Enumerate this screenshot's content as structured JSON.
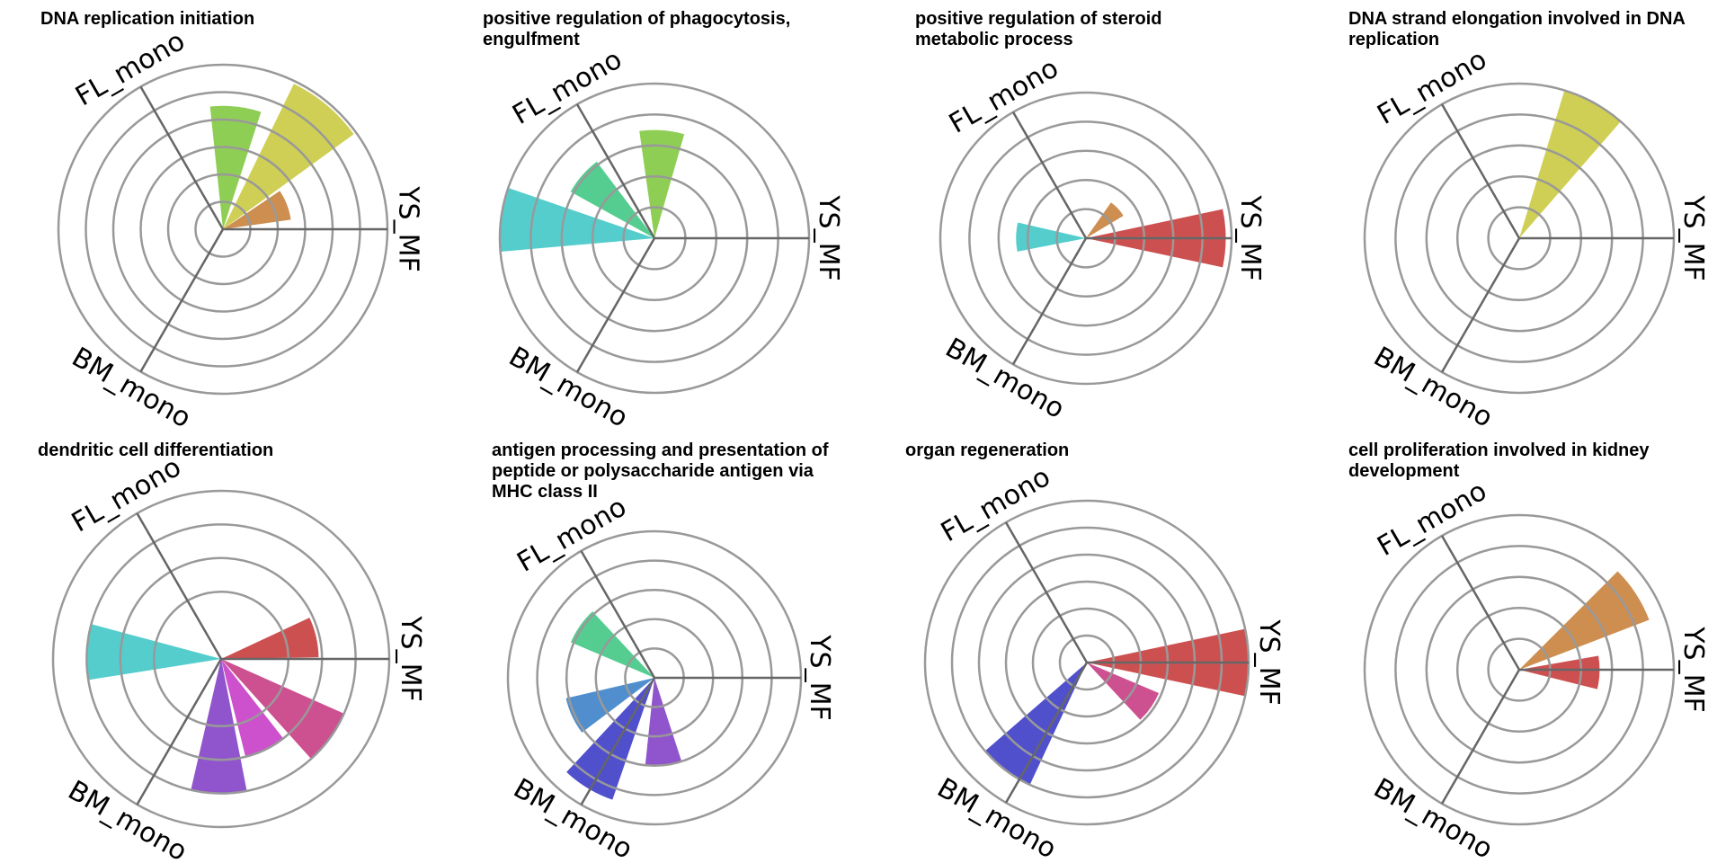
{
  "figure": {
    "grid": {
      "rows": 2,
      "cols": 4
    }
  },
  "colors": {
    "gridline": "#999999",
    "spoke": "#666666",
    "background": "#ffffff"
  },
  "chart_data": [
    {
      "type": "radial_bar",
      "title_lines": [
        "DNA replication initiation"
      ],
      "axes": [
        "YS_MF",
        "FL_mono",
        "BM_mono"
      ],
      "rmax": 6,
      "grid_rings": [
        1,
        2,
        3,
        4,
        5,
        6
      ],
      "bars": [
        {
          "angle": 21,
          "width": 26,
          "value": 2.5,
          "color": "#cd8e50"
        },
        {
          "angle": 50,
          "width": 28,
          "value": 5.9,
          "color": "#cfcf55"
        },
        {
          "angle": 84,
          "width": 24,
          "value": 4.5,
          "color": "#8fce55"
        }
      ]
    },
    {
      "type": "radial_bar",
      "title_lines": [
        "positive regulation of phagocytosis,",
        "engulfment"
      ],
      "axes": [
        "YS_MF",
        "FL_mono",
        "BM_mono"
      ],
      "rmax": 5,
      "grid_rings": [
        1,
        2,
        3,
        4,
        5
      ],
      "bars": [
        {
          "angle": 86,
          "width": 24,
          "value": 3.5,
          "color": "#8fce55"
        },
        {
          "angle": 139,
          "width": 24,
          "value": 3.1,
          "color": "#55cd90"
        },
        {
          "angle": 173,
          "width": 24,
          "value": 5.0,
          "color": "#55cdcd"
        }
      ]
    },
    {
      "type": "radial_bar",
      "title_lines": [
        "positive regulation of steroid",
        "metabolic process"
      ],
      "axes": [
        "YS_MF",
        "FL_mono",
        "BM_mono"
      ],
      "rmax": 5,
      "grid_rings": [
        1,
        2,
        3,
        4,
        5
      ],
      "bars": [
        {
          "angle": 0,
          "width": 24,
          "value": 4.8,
          "color": "#cd5050"
        },
        {
          "angle": 43,
          "width": 24,
          "value": 1.5,
          "color": "#cd8e50"
        },
        {
          "angle": 179,
          "width": 24,
          "value": 2.4,
          "color": "#55cdcd"
        }
      ]
    },
    {
      "type": "radial_bar",
      "title_lines": [
        "DNA strand elongation involved in DNA",
        "replication"
      ],
      "axes": [
        "YS_MF",
        "FL_mono",
        "BM_mono"
      ],
      "rmax": 5,
      "grid_rings": [
        1,
        2,
        3,
        4,
        5
      ],
      "bars": [
        {
          "angle": 61,
          "width": 24,
          "value": 5.0,
          "color": "#cfcf55"
        }
      ]
    },
    {
      "type": "radial_bar",
      "title_lines": [
        "dendritic cell differentiation"
      ],
      "axes": [
        "YS_MF",
        "FL_mono",
        "BM_mono"
      ],
      "rmax": 5,
      "grid_rings": [
        2,
        3,
        4,
        5
      ],
      "bars": [
        {
          "angle": 13,
          "width": 24,
          "value": 2.9,
          "color": "#cd5050"
        },
        {
          "angle": 324,
          "width": 24,
          "value": 4.0,
          "color": "#cd5090"
        },
        {
          "angle": 296,
          "width": 24,
          "value": 3.0,
          "color": "#cd50cd"
        },
        {
          "angle": 269,
          "width": 24,
          "value": 4.0,
          "color": "#9055cd"
        },
        {
          "angle": 177,
          "width": 24,
          "value": 4.0,
          "color": "#55cdcd"
        }
      ]
    },
    {
      "type": "radial_bar",
      "title_lines": [
        "antigen processing and presentation of",
        "peptide or polysaccharide antigen via",
        "MHC class II"
      ],
      "axes": [
        "YS_MF",
        "FL_mono",
        "BM_mono"
      ],
      "rmax": 5,
      "grid_rings": [
        1,
        2,
        3,
        4,
        5
      ],
      "bars": [
        {
          "angle": 145,
          "width": 24,
          "value": 3.1,
          "color": "#55cd90"
        },
        {
          "angle": 205,
          "width": 24,
          "value": 3.1,
          "color": "#508ecd"
        },
        {
          "angle": 239,
          "width": 24,
          "value": 4.4,
          "color": "#5050cd"
        },
        {
          "angle": 276,
          "width": 24,
          "value": 3.0,
          "color": "#9055cd"
        }
      ]
    },
    {
      "type": "radial_bar",
      "title_lines": [
        "organ regeneration"
      ],
      "axes": [
        "YS_MF",
        "FL_mono",
        "BM_mono"
      ],
      "rmax": 6,
      "grid_rings": [
        1,
        2,
        3,
        4,
        5,
        6
      ],
      "bars": [
        {
          "angle": 0,
          "width": 24,
          "value": 6.0,
          "color": "#cd5050"
        },
        {
          "angle": 325,
          "width": 24,
          "value": 2.9,
          "color": "#cd5090"
        },
        {
          "angle": 233,
          "width": 24,
          "value": 5.0,
          "color": "#5050cd"
        }
      ]
    },
    {
      "type": "radial_bar",
      "title_lines": [
        "cell proliferation involved in kidney",
        "development"
      ],
      "axes": [
        "YS_MF",
        "FL_mono",
        "BM_mono"
      ],
      "rmax": 5,
      "grid_rings": [
        1,
        2,
        3,
        4,
        5
      ],
      "bars": [
        {
          "angle": 358,
          "width": 24,
          "value": 2.6,
          "color": "#cd5050"
        },
        {
          "angle": 33,
          "width": 24,
          "value": 4.5,
          "color": "#cd8e50"
        }
      ]
    }
  ]
}
